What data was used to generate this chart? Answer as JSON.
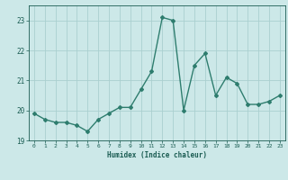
{
  "x": [
    0,
    1,
    2,
    3,
    4,
    5,
    6,
    7,
    8,
    9,
    10,
    11,
    12,
    13,
    14,
    15,
    16,
    17,
    18,
    19,
    20,
    21,
    22,
    23
  ],
  "y": [
    19.9,
    19.7,
    19.6,
    19.6,
    19.5,
    19.3,
    19.7,
    19.9,
    20.1,
    20.1,
    20.7,
    21.3,
    23.1,
    23.0,
    20.0,
    21.5,
    21.9,
    20.5,
    21.1,
    20.9,
    20.2,
    20.2,
    20.3,
    20.5
  ],
  "line_color": "#2e7d6e",
  "bg_color": "#cce8e8",
  "grid_color": "#aacfcf",
  "xlabel": "Humidex (Indice chaleur)",
  "ylim": [
    19.0,
    23.5
  ],
  "xlim": [
    -0.5,
    23.5
  ],
  "yticks": [
    19,
    20,
    21,
    22,
    23
  ],
  "xticks": [
    0,
    1,
    2,
    3,
    4,
    5,
    6,
    7,
    8,
    9,
    10,
    11,
    12,
    13,
    14,
    15,
    16,
    17,
    18,
    19,
    20,
    21,
    22,
    23
  ],
  "xtick_labels": [
    "0",
    "1",
    "2",
    "3",
    "4",
    "5",
    "6",
    "7",
    "8",
    "9",
    "10",
    "11",
    "12",
    "13",
    "14",
    "15",
    "16",
    "17",
    "18",
    "19",
    "20",
    "21",
    "22",
    "23"
  ],
  "marker": "D",
  "markersize": 2.0,
  "linewidth": 1.0,
  "font_color": "#1a5c52"
}
